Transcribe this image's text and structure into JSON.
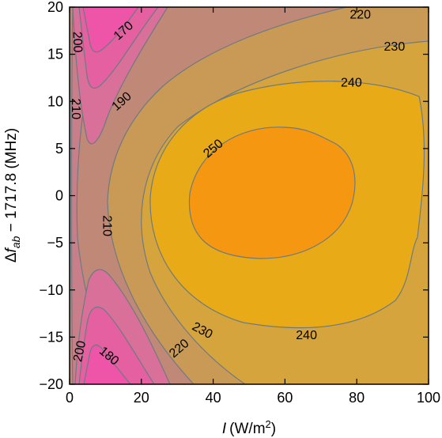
{
  "chart_data": {
    "type": "contour",
    "xlabel": "I (W/m2)",
    "ylabel": "Δf_ab − 1717.8 (MHz)",
    "xlim": [
      0,
      100
    ],
    "ylim": [
      -20,
      20
    ],
    "x_ticks": [
      0,
      20,
      40,
      60,
      80,
      100
    ],
    "y_ticks": [
      -20,
      -15,
      -10,
      -5,
      0,
      5,
      10,
      15,
      20
    ],
    "contour_levels": [
      170,
      180,
      190,
      200,
      210,
      220,
      230,
      240,
      250
    ],
    "contour_labels": [
      {
        "text": "170",
        "x": 15,
        "y": 17.5,
        "angle": -42
      },
      {
        "text": "180",
        "x": 11,
        "y": -17,
        "angle": 40
      },
      {
        "text": "190",
        "x": 14.5,
        "y": 10,
        "angle": -42
      },
      {
        "text": "200",
        "x": 2.2,
        "y": 16.3,
        "angle": 88
      },
      {
        "text": "200",
        "x": 2.8,
        "y": -16.5,
        "angle": -78
      },
      {
        "text": "210",
        "x": 1.8,
        "y": 9.2,
        "angle": 90
      },
      {
        "text": "210",
        "x": 10.5,
        "y": -3.2,
        "angle": 90
      },
      {
        "text": "220",
        "x": 81,
        "y": 19.2,
        "angle": 0
      },
      {
        "text": "220",
        "x": 30.5,
        "y": -16.2,
        "angle": -40
      },
      {
        "text": "230",
        "x": 90.5,
        "y": 15.8,
        "angle": 0
      },
      {
        "text": "230",
        "x": 37,
        "y": -14.3,
        "angle": 28
      },
      {
        "text": "240",
        "x": 78.5,
        "y": 12,
        "angle": 0
      },
      {
        "text": "240",
        "x": 66,
        "y": -14.8,
        "angle": 0
      },
      {
        "text": "250",
        "x": 40,
        "y": 5,
        "angle": -40
      }
    ],
    "colors": {
      "170": "#ee55a8",
      "180": "#e460a0",
      "190": "#d8709a",
      "200": "#c97f8a",
      "210": "#c08876",
      "220": "#c89a56",
      "230": "#d5a43c",
      "240": "#e8aa16",
      "250": "#f59710",
      "260": "#fb8310",
      "contour_line": "#6e7a82"
    }
  },
  "axes_text": {
    "xlabel_var": "I",
    "xlabel_unit_pre": "(W/m",
    "xlabel_sup": "2",
    "xlabel_unit_post": ")",
    "ylabel_delta": "Δ",
    "ylabel_f": "f",
    "ylabel_sub": "ab",
    "ylabel_rest": " − 1717.8 (MHz)"
  }
}
